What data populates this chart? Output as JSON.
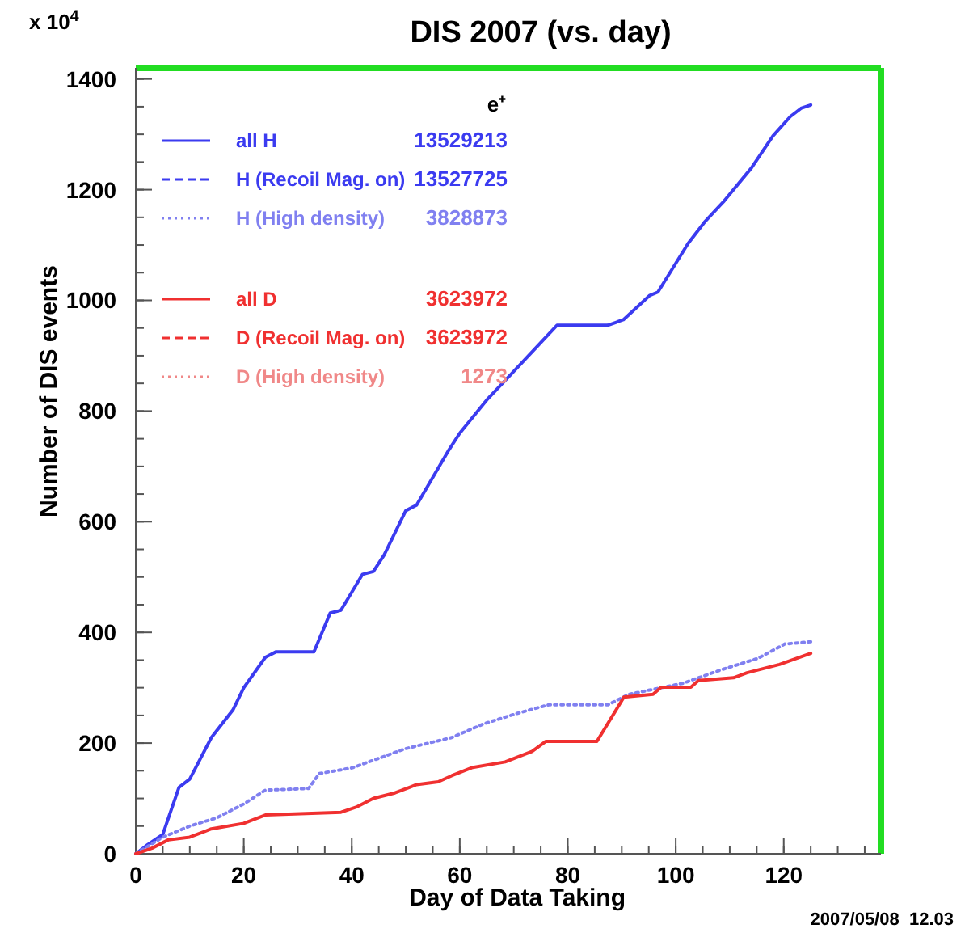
{
  "chart_data": {
    "type": "line",
    "title": "DIS 2007 (vs. day)",
    "xlabel": "Day of Data Taking",
    "ylabel": "Number of DIS events",
    "xlim": [
      0,
      138
    ],
    "xticks": [
      0,
      20,
      40,
      60,
      80,
      100,
      120
    ],
    "ylim": [
      0,
      1420
    ],
    "yticks": [
      0,
      200,
      400,
      600,
      800,
      1000,
      1200,
      1400
    ],
    "legend": "top left",
    "grid": false,
    "marker": "none",
    "annotations": [
      "13529213",
      "13527725",
      "3828873",
      "3623972",
      "3623972",
      "1273",
      "e⁺",
      "x 10$^{4}$",
      "2007/05/08  12.03"
    ],
    "series": [
      {
        "name": "all H",
        "color": "#3b3bf0",
        "line_style": "solid",
        "x": [
          0,
          2,
          5,
          8,
          10,
          14,
          18,
          20,
          24,
          26,
          33,
          36,
          38,
          42,
          44,
          46,
          50,
          52,
          55,
          58,
          60,
          65,
          71.3,
          78,
          87.4,
          90.3,
          95.2,
          96.7,
          102.3,
          105.3,
          109,
          114,
          118,
          121.2,
          123.2,
          125
        ],
        "values": [
          0,
          15,
          35,
          120,
          135,
          210,
          260,
          300,
          355,
          365,
          365,
          435,
          440,
          505,
          510,
          540,
          620,
          630,
          680,
          730,
          760,
          820,
          885,
          955,
          955,
          965,
          1009,
          1015,
          1103,
          1141,
          1180,
          1239,
          1297,
          1332,
          1347,
          1353
        ]
      },
      {
        "name": "H (Recoil Mag. on)",
        "color": "#3b3bf0",
        "line_style": "dashed",
        "values": [
          null
        ]
      },
      {
        "name": "H (High density)",
        "color": "#8080f0",
        "line_style": "dotted",
        "x": [
          0,
          5,
          10,
          15,
          20,
          24,
          32,
          34,
          40,
          50,
          58.5,
          64.5,
          70.4,
          76.4,
          87.4,
          91.3,
          101.3,
          108.3,
          115.2,
          120.2,
          125
        ],
        "values": [
          0,
          30,
          50,
          65,
          90,
          115,
          118,
          145,
          155,
          190,
          210,
          235,
          253,
          269,
          269,
          288,
          308,
          332,
          353,
          379,
          383
        ]
      },
      {
        "name": "all D",
        "color": "#f03030",
        "line_style": "solid",
        "x": [
          0,
          3,
          6,
          10,
          14,
          20,
          24,
          38,
          41,
          44,
          48,
          52,
          56,
          58.5,
          62.4,
          68.4,
          73.4,
          75.9,
          85.4,
          90.4,
          95.8,
          97.3,
          102.8,
          104.2,
          110.7,
          113.2,
          119.2,
          125
        ],
        "values": [
          0,
          10,
          25,
          30,
          45,
          55,
          70,
          75,
          85,
          100,
          110,
          125,
          130,
          141,
          156,
          166,
          185,
          203,
          203,
          283,
          288,
          301,
          301,
          313,
          318,
          327,
          342,
          362
        ]
      },
      {
        "name": "D (Recoil Mag. on)",
        "color": "#f03030",
        "line_style": "dashed",
        "values": [
          null
        ]
      },
      {
        "name": "D (High density)",
        "color": "#f08888",
        "line_style": "dotted",
        "values": [
          null
        ]
      }
    ]
  }
}
